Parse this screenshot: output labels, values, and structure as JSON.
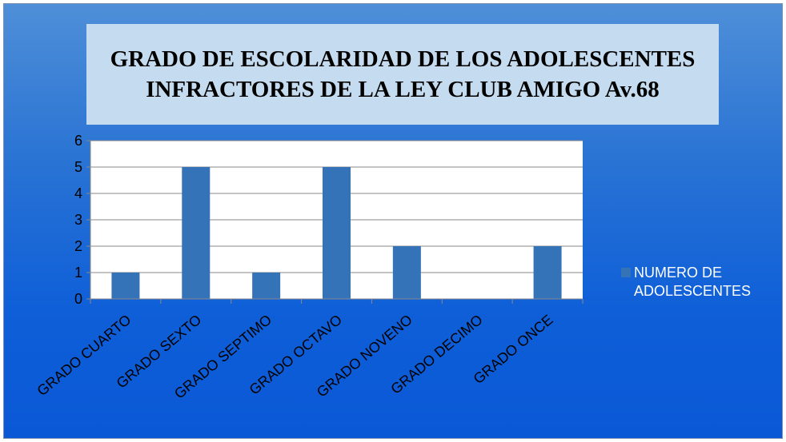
{
  "chart_data": {
    "type": "bar",
    "title": "GRADO DE ESCOLARIDAD DE LOS ADOLESCENTES INFRACTORES DE LA LEY CLUB AMIGO Av.68",
    "categories": [
      "GRADO CUARTO",
      "GRADO SEXTO",
      "GRADO SEPTIMO",
      "GRADO OCTAVO",
      "GRADO NOVENO",
      "GRADO DECIMO",
      "GRADO ONCE"
    ],
    "series": [
      {
        "name": "NUMERO DE ADOLESCENTES",
        "color": "#3473b8",
        "values": [
          1,
          5,
          1,
          5,
          2,
          0,
          2
        ]
      }
    ],
    "ylim": [
      0,
      6
    ],
    "yticks": [
      0,
      1,
      2,
      3,
      4,
      5,
      6
    ],
    "grid": true,
    "legend": "right"
  }
}
